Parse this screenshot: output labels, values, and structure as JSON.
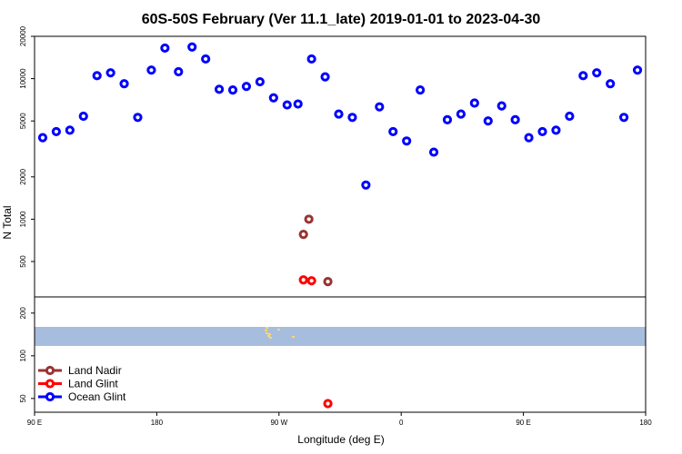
{
  "chart_data": {
    "type": "scatter",
    "title": "60S-50S February (Ver 11.1_late)   2019-01-01 to 2023-04-30",
    "xlabel": "Longitude (deg E)",
    "ylabel": "N Total",
    "x_ticks": [
      {
        "value": 90,
        "label": "90 E"
      },
      {
        "value": 180,
        "label": "180"
      },
      {
        "value": 270,
        "label": "90 W"
      },
      {
        "value": 360,
        "label": "0"
      },
      {
        "value": 450,
        "label": "90 E"
      },
      {
        "value": 540,
        "label": "180"
      }
    ],
    "xlim": [
      90,
      540
    ],
    "upper_panel": {
      "scale": "log",
      "ylim": [
        280,
        20000
      ],
      "y_ticks": [
        {
          "value": 500,
          "label": "500"
        },
        {
          "value": 1000,
          "label": "1000"
        },
        {
          "value": 2000,
          "label": "2000"
        },
        {
          "value": 5000,
          "label": "5000"
        },
        {
          "value": 10000,
          "label": "10000"
        },
        {
          "value": 20000,
          "label": "20000"
        }
      ]
    },
    "lower_panel": {
      "scale": "log",
      "ylim": [
        40,
        260
      ],
      "y_ticks": [
        {
          "value": 50,
          "label": "50"
        },
        {
          "value": 100,
          "label": "100"
        },
        {
          "value": 200,
          "label": "200"
        }
      ],
      "map_band": {
        "ocean_color": "#a7bddd",
        "land_color": "#ffd86e"
      }
    },
    "legend": {
      "position": "lower-left"
    },
    "series": [
      {
        "name": "Land Nadir",
        "color": "#993333",
        "panel": "upper",
        "points": [
          [
            288,
            780
          ],
          [
            292,
            1000
          ],
          [
            306,
            360
          ]
        ]
      },
      {
        "name": "Land Glint",
        "color": "#ff0000",
        "panel": "mixed",
        "points": [
          [
            288,
            370,
            "upper"
          ],
          [
            294,
            365,
            "upper"
          ],
          [
            306,
            46,
            "lower"
          ]
        ]
      },
      {
        "name": "Ocean Glint",
        "color": "#0000ff",
        "panel": "upper",
        "points": [
          [
            96,
            3800
          ],
          [
            106,
            4200
          ],
          [
            116,
            4300
          ],
          [
            126,
            5400
          ],
          [
            136,
            10500
          ],
          [
            146,
            11000
          ],
          [
            156,
            9200
          ],
          [
            166,
            5300
          ],
          [
            176,
            11500
          ],
          [
            186,
            16500
          ],
          [
            196,
            11200
          ],
          [
            206,
            16800
          ],
          [
            216,
            13800
          ],
          [
            226,
            8400
          ],
          [
            236,
            8300
          ],
          [
            246,
            8800
          ],
          [
            256,
            9500
          ],
          [
            266,
            7300
          ],
          [
            276,
            6500
          ],
          [
            284,
            6600
          ],
          [
            294,
            13800
          ],
          [
            304,
            10300
          ],
          [
            314,
            5600
          ],
          [
            324,
            5300
          ],
          [
            334,
            1750
          ],
          [
            344,
            6300
          ],
          [
            354,
            4200
          ],
          [
            364,
            3600
          ],
          [
            374,
            8300
          ],
          [
            384,
            3000
          ],
          [
            394,
            5100
          ],
          [
            404,
            5600
          ],
          [
            414,
            6700
          ],
          [
            424,
            5000
          ],
          [
            434,
            6400
          ],
          [
            444,
            5100
          ],
          [
            454,
            3800
          ],
          [
            464,
            4200
          ],
          [
            474,
            4300
          ],
          [
            484,
            5400
          ],
          [
            494,
            10500
          ],
          [
            504,
            11000
          ],
          [
            514,
            9200
          ],
          [
            524,
            5300
          ],
          [
            534,
            11500
          ]
        ]
      }
    ]
  }
}
